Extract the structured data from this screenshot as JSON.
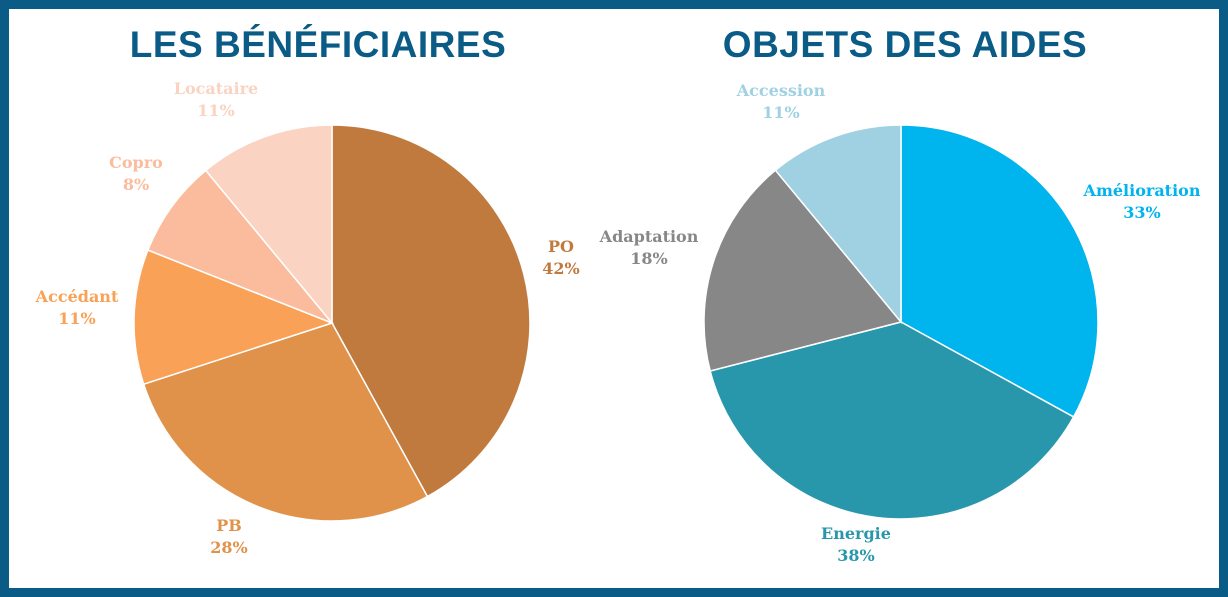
{
  "colors": {
    "frame": "#0a5b86",
    "title": "#0a5b86"
  },
  "chart_data": [
    {
      "type": "pie",
      "title": "LES BÉNÉFICIAIRES",
      "slices": [
        {
          "name": "PO",
          "value": 42,
          "label": "42%",
          "color": "#c17a3e"
        },
        {
          "name": "PB",
          "value": 28,
          "label": "28%",
          "color": "#e0924a"
        },
        {
          "name": "Accédant",
          "value": 11,
          "label": "11%",
          "color": "#f8a157"
        },
        {
          "name": "Copro",
          "value": 8,
          "label": "8%",
          "color": "#fbbc9d"
        },
        {
          "name": "Locataire",
          "value": 11,
          "label": "11%",
          "color": "#fad3c2"
        }
      ]
    },
    {
      "type": "pie",
      "title": "OBJETS DES AIDES",
      "slices": [
        {
          "name": "Amélioration",
          "value": 33,
          "label": "33%",
          "color": "#00b4ed"
        },
        {
          "name": "Energie",
          "value": 38,
          "label": "38%",
          "color": "#2997ab"
        },
        {
          "name": "Adaptation",
          "value": 18,
          "label": "18%",
          "color": "#878787"
        },
        {
          "name": "Accession",
          "value": 11,
          "label": "11%",
          "color": "#9fd1e3"
        }
      ]
    }
  ]
}
